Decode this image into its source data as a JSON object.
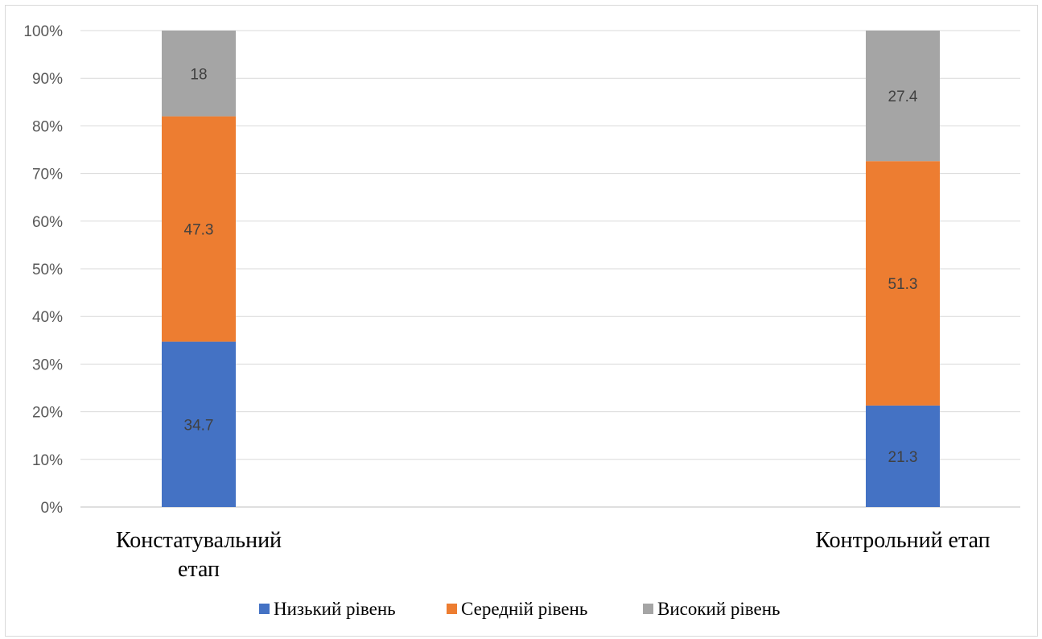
{
  "chart_data": {
    "type": "bar",
    "stacked": true,
    "percent_scale": true,
    "categories": [
      [
        "Констатувальний",
        "етап"
      ],
      [
        "Контрольний етап"
      ]
    ],
    "series": [
      {
        "name": "Низький рівень",
        "values": [
          34.7,
          21.3
        ],
        "color": "#4472c4"
      },
      {
        "name": "Середній рівень",
        "values": [
          47.3,
          51.3
        ],
        "color": "#ed7d31"
      },
      {
        "name": "Високий рівень",
        "values": [
          18,
          27.4
        ],
        "color": "#a5a5a5"
      }
    ],
    "y_ticks": [
      "0%",
      "10%",
      "20%",
      "30%",
      "40%",
      "50%",
      "60%",
      "70%",
      "80%",
      "90%",
      "100%"
    ],
    "ylim": [
      0,
      100
    ],
    "grid": true,
    "legend_position": "bottom"
  }
}
